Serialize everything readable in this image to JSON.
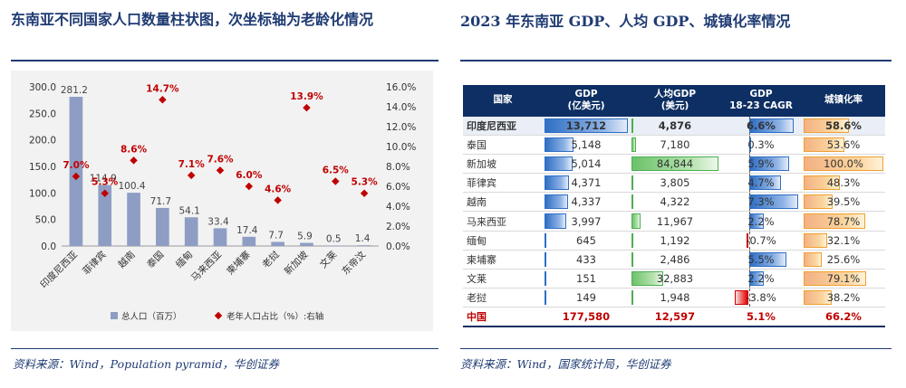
{
  "left": {
    "title": "东南亚不同国家人口数量柱状图，次坐标轴为老龄化情况",
    "source": "资料来源：Wind，Population pyramid，华创证券"
  },
  "right": {
    "title": "2023 年东南亚 GDP、人均 GDP、城镇化率情况",
    "source": "资料来源：Wind，国家统计局，华创证券",
    "table": {
      "headers": [
        "国家",
        "GDP\n(亿美元)",
        "人均GDP\n(美元)",
        "GDP\n18-23 CAGR",
        "城镇化率"
      ],
      "rows": [
        {
          "country": "印度尼西亚",
          "gdp": "13,712",
          "gdp_pc": "4,876",
          "cagr": "6.6%",
          "urban": "58.6%",
          "gdp_v": 13712,
          "gdp_pc_v": 4876,
          "cagr_v": 6.6,
          "urban_v": 58.6,
          "highlight": true
        },
        {
          "country": "泰国",
          "gdp": "5,148",
          "gdp_pc": "7,180",
          "cagr": "0.3%",
          "urban": "53.6%",
          "gdp_v": 5148,
          "gdp_pc_v": 7180,
          "cagr_v": 0.3,
          "urban_v": 53.6
        },
        {
          "country": "新加坡",
          "gdp": "5,014",
          "gdp_pc": "84,844",
          "cagr": "5.9%",
          "urban": "100.0%",
          "gdp_v": 5014,
          "gdp_pc_v": 84844,
          "cagr_v": 5.9,
          "urban_v": 100.0
        },
        {
          "country": "菲律宾",
          "gdp": "4,371",
          "gdp_pc": "3,805",
          "cagr": "4.7%",
          "urban": "48.3%",
          "gdp_v": 4371,
          "gdp_pc_v": 3805,
          "cagr_v": 4.7,
          "urban_v": 48.3
        },
        {
          "country": "越南",
          "gdp": "4,337",
          "gdp_pc": "4,322",
          "cagr": "7.3%",
          "urban": "39.5%",
          "gdp_v": 4337,
          "gdp_pc_v": 4322,
          "cagr_v": 7.3,
          "urban_v": 39.5
        },
        {
          "country": "马来西亚",
          "gdp": "3,997",
          "gdp_pc": "11,967",
          "cagr": "2.2%",
          "urban": "78.7%",
          "gdp_v": 3997,
          "gdp_pc_v": 11967,
          "cagr_v": 2.2,
          "urban_v": 78.7
        },
        {
          "country": "缅甸",
          "gdp": "645",
          "gdp_pc": "1,192",
          "cagr": "-0.7%",
          "urban": "32.1%",
          "gdp_v": 645,
          "gdp_pc_v": 1192,
          "cagr_v": -0.7,
          "urban_v": 32.1
        },
        {
          "country": "柬埔寨",
          "gdp": "433",
          "gdp_pc": "2,486",
          "cagr": "5.5%",
          "urban": "25.6%",
          "gdp_v": 433,
          "gdp_pc_v": 2486,
          "cagr_v": 5.5,
          "urban_v": 25.6
        },
        {
          "country": "文莱",
          "gdp": "151",
          "gdp_pc": "32,883",
          "cagr": "2.2%",
          "urban": "79.1%",
          "gdp_v": 151,
          "gdp_pc_v": 32883,
          "cagr_v": 2.2,
          "urban_v": 79.1
        },
        {
          "country": "老挝",
          "gdp": "149",
          "gdp_pc": "1,948",
          "cagr": "-3.8%",
          "urban": "38.2%",
          "gdp_v": 149,
          "gdp_pc_v": 1948,
          "cagr_v": -3.8,
          "urban_v": 38.2
        },
        {
          "country": "中国",
          "gdp": "177,580",
          "gdp_pc": "12,597",
          "cagr": "5.1%",
          "urban": "66.2%",
          "total": true
        }
      ]
    }
  },
  "chart_data": {
    "type": "bar",
    "title": "东南亚不同国家人口数量柱状图，次坐标轴为老龄化情况",
    "categories": [
      "印度尼西亚",
      "菲律宾",
      "越南",
      "泰国",
      "缅甸",
      "马来西亚",
      "柬埔寨",
      "老挝",
      "新加坡",
      "文莱",
      "东帝汶"
    ],
    "series": [
      {
        "name": "总人口（百万）",
        "type": "bar",
        "axis": "left",
        "values": [
          281.2,
          114.9,
          100.4,
          71.7,
          54.1,
          33.4,
          17.4,
          7.7,
          5.9,
          0.5,
          1.4
        ],
        "labels": [
          "281.2",
          "114.9",
          "100.4",
          "71.7",
          "54.1",
          "33.4",
          "17.4",
          "7.7",
          "5.9",
          "0.5",
          "1.4"
        ]
      },
      {
        "name": "老年人口占比（%）:右轴",
        "type": "scatter",
        "axis": "right",
        "values": [
          7.0,
          5.3,
          8.6,
          14.7,
          7.1,
          7.6,
          6.0,
          4.6,
          13.9,
          6.5,
          5.3
        ],
        "labels": [
          "7.0%",
          "5.3%",
          "8.6%",
          "14.7%",
          "7.1%",
          "7.6%",
          "6.0%",
          "4.6%",
          "13.9%",
          "6.5%",
          "5.3%"
        ]
      }
    ],
    "y_left": {
      "min": 0,
      "max": 300,
      "ticks": [
        "0.0",
        "50.0",
        "100.0",
        "150.0",
        "200.0",
        "250.0",
        "300.0"
      ]
    },
    "y_right": {
      "min": 0,
      "max": 16,
      "ticks": [
        "0.0%",
        "2.0%",
        "4.0%",
        "6.0%",
        "8.0%",
        "10.0%",
        "12.0%",
        "14.0%",
        "16.0%"
      ]
    },
    "legend": [
      "总人口（百万）",
      "老年人口占比（%）:右轴"
    ],
    "legend_position": "bottom",
    "colors": {
      "bar": "#8e9dc4",
      "marker": "#c00000",
      "marker_label": "#c00000",
      "bar_label": "#444444"
    }
  }
}
